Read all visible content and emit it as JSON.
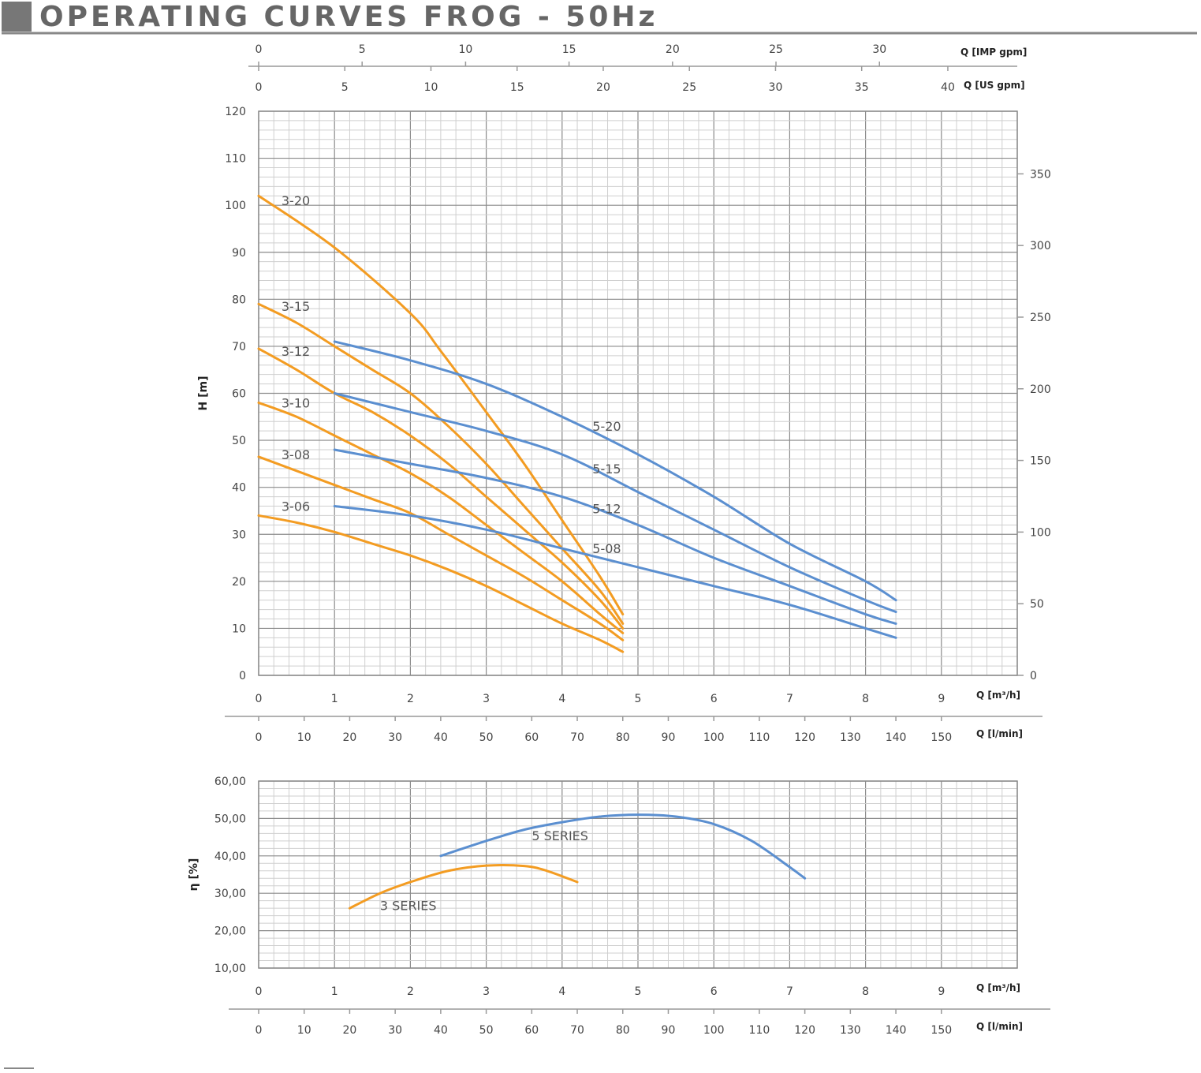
{
  "page_title": "OPERATING CURVES FROG - 50Hz",
  "colors": {
    "series_3": "#f39c22",
    "series_5": "#5b8fd0",
    "title_block": "#777777",
    "rule": "#888888"
  },
  "chart_data": [
    {
      "type": "line",
      "name": "head-curves",
      "xlabel": "Q [m³/h]",
      "ylabel": "H [m]",
      "xlim": [
        0,
        10
      ],
      "ylim": [
        0,
        120
      ],
      "grid": true,
      "y_ticks": [
        "0",
        "10",
        "20",
        "30",
        "40",
        "50",
        "60",
        "70",
        "80",
        "90",
        "100",
        "110",
        "120"
      ],
      "x_ticks": [
        "0",
        "1",
        "2",
        "3",
        "4",
        "5",
        "6",
        "7",
        "8",
        "9"
      ],
      "right_axis": {
        "label": "",
        "ticks": [
          "0",
          "50",
          "100",
          "150",
          "200",
          "250",
          "300",
          "350"
        ],
        "values": [
          0,
          50,
          100,
          150,
          200,
          250,
          300,
          350
        ],
        "range": [
          0,
          393.7
        ]
      },
      "top_axes": [
        {
          "label": "Q [IMP gpm]",
          "ticks": [
            "0",
            "5",
            "10",
            "15",
            "20",
            "25",
            "30"
          ],
          "values": [
            0,
            5,
            10,
            15,
            20,
            25,
            30
          ],
          "per_m3h": 3.666
        },
        {
          "label": "Q [US gpm]",
          "ticks": [
            "0",
            "5",
            "10",
            "15",
            "20",
            "25",
            "30",
            "35",
            "40"
          ],
          "values": [
            0,
            5,
            10,
            15,
            20,
            25,
            30,
            35,
            40
          ],
          "per_m3h": 4.403
        }
      ],
      "bottom_axis2": {
        "label": "Q [l/min]",
        "ticks": [
          "0",
          "10",
          "20",
          "30",
          "40",
          "50",
          "60",
          "70",
          "80",
          "90",
          "100",
          "110",
          "120",
          "130",
          "140",
          "150"
        ],
        "values": [
          0,
          10,
          20,
          30,
          40,
          50,
          60,
          70,
          80,
          90,
          100,
          110,
          120,
          130,
          140,
          150
        ],
        "per_m3h": 16.667
      },
      "series": [
        {
          "name": "3-20",
          "color": "#f39c22",
          "x": [
            0,
            1,
            2,
            2.4,
            3,
            3.5,
            4,
            4.5,
            4.8
          ],
          "y": [
            102,
            91,
            77,
            69,
            56,
            45,
            33,
            21,
            13
          ]
        },
        {
          "name": "3-15",
          "color": "#f39c22",
          "x": [
            0,
            0.5,
            1,
            1.5,
            2,
            2.5,
            3,
            3.5,
            4,
            4.5,
            4.8
          ],
          "y": [
            79,
            75,
            70,
            65,
            60,
            53,
            45,
            36,
            27,
            18,
            11
          ]
        },
        {
          "name": "3-12",
          "color": "#f39c22",
          "x": [
            0,
            0.5,
            1,
            1.5,
            2,
            2.5,
            3,
            3.5,
            4,
            4.5,
            4.8
          ],
          "y": [
            69.5,
            65,
            60,
            56,
            51,
            45,
            38,
            31,
            24,
            16,
            10
          ]
        },
        {
          "name": "3-10",
          "color": "#f39c22",
          "x": [
            0,
            0.5,
            1,
            1.5,
            2,
            2.5,
            3,
            3.5,
            4,
            4.5,
            4.8
          ],
          "y": [
            58,
            55,
            51,
            47,
            43,
            38,
            32,
            26,
            20,
            13,
            9
          ]
        },
        {
          "name": "3-08",
          "color": "#f39c22",
          "x": [
            0,
            0.5,
            1,
            1.5,
            2,
            2.5,
            3,
            3.5,
            4,
            4.5,
            4.8
          ],
          "y": [
            46.5,
            43.5,
            40.5,
            37.5,
            34.5,
            30,
            25.5,
            21,
            16,
            11,
            7.5
          ]
        },
        {
          "name": "3-06",
          "color": "#f39c22",
          "x": [
            0,
            0.5,
            1,
            1.5,
            2,
            2.5,
            3,
            3.5,
            4,
            4.5,
            4.8
          ],
          "y": [
            34,
            32.5,
            30.5,
            28,
            25.5,
            22.5,
            19,
            15,
            11,
            7.5,
            5
          ]
        },
        {
          "name": "5-20",
          "color": "#5b8fd0",
          "x": [
            1,
            2,
            3,
            4,
            5,
            6,
            7,
            8,
            8.4
          ],
          "y": [
            71,
            67,
            62,
            55,
            47,
            38,
            28,
            20,
            16
          ]
        },
        {
          "name": "5-15",
          "color": "#5b8fd0",
          "x": [
            1,
            2,
            3,
            4,
            5,
            6,
            7,
            8,
            8.4
          ],
          "y": [
            60,
            56,
            52,
            47,
            39,
            31,
            23,
            16,
            13.5
          ]
        },
        {
          "name": "5-12",
          "color": "#5b8fd0",
          "x": [
            1,
            2,
            3,
            4,
            5,
            6,
            7,
            8,
            8.4
          ],
          "y": [
            48,
            45,
            42,
            38,
            32,
            25,
            19,
            13,
            11
          ]
        },
        {
          "name": "5-08",
          "color": "#5b8fd0",
          "x": [
            1,
            2,
            3,
            4,
            5,
            6,
            7,
            8,
            8.4
          ],
          "y": [
            36,
            34,
            31,
            27,
            23,
            19,
            15,
            10,
            8
          ]
        }
      ],
      "labels": [
        {
          "text": "3-20",
          "x": 0.3,
          "y": 100
        },
        {
          "text": "3-15",
          "x": 0.3,
          "y": 77.5
        },
        {
          "text": "3-12",
          "x": 0.3,
          "y": 68
        },
        {
          "text": "3-10",
          "x": 0.3,
          "y": 57
        },
        {
          "text": "3-08",
          "x": 0.3,
          "y": 46
        },
        {
          "text": "3-06",
          "x": 0.3,
          "y": 35
        },
        {
          "text": "5-20",
          "x": 4.4,
          "y": 52
        },
        {
          "text": "5-15",
          "x": 4.4,
          "y": 43
        },
        {
          "text": "5-12",
          "x": 4.4,
          "y": 34.5
        },
        {
          "text": "5-08",
          "x": 4.4,
          "y": 26
        }
      ]
    },
    {
      "type": "line",
      "name": "efficiency-curves",
      "xlabel": "Q [m³/h]",
      "ylabel": "η [%]",
      "xlim": [
        0,
        10
      ],
      "ylim": [
        10,
        60
      ],
      "grid": true,
      "y_ticks": [
        "10,00",
        "20,00",
        "30,00",
        "40,00",
        "50,00",
        "60,00"
      ],
      "x_ticks": [
        "0",
        "1",
        "2",
        "3",
        "4",
        "5",
        "6",
        "7",
        "8",
        "9"
      ],
      "bottom_axis2": {
        "label": "Q [l/min]",
        "ticks": [
          "0",
          "10",
          "20",
          "30",
          "40",
          "50",
          "60",
          "70",
          "80",
          "90",
          "100",
          "110",
          "120",
          "130",
          "140",
          "150"
        ],
        "values": [
          0,
          10,
          20,
          30,
          40,
          50,
          60,
          70,
          80,
          90,
          100,
          110,
          120,
          130,
          140,
          150
        ],
        "per_m3h": 16.667
      },
      "series": [
        {
          "name": "3 SERIES",
          "color": "#f39c22",
          "x": [
            1.2,
            1.6,
            2,
            2.5,
            3,
            3.5,
            3.8,
            4.2
          ],
          "y": [
            26,
            30,
            33,
            36,
            37.4,
            37.3,
            36,
            33
          ]
        },
        {
          "name": "5 SERIES",
          "color": "#5b8fd0",
          "x": [
            2.4,
            3,
            3.5,
            4,
            4.5,
            5,
            5.5,
            6,
            6.5,
            7,
            7.2
          ],
          "y": [
            40,
            44,
            47,
            49,
            50.5,
            51,
            50.5,
            48.5,
            44,
            37,
            34
          ]
        }
      ],
      "labels": [
        {
          "text": "3 SERIES",
          "x": 1.6,
          "y": 25.5
        },
        {
          "text": "5 SERIES",
          "x": 3.6,
          "y": 44.2
        }
      ]
    }
  ]
}
